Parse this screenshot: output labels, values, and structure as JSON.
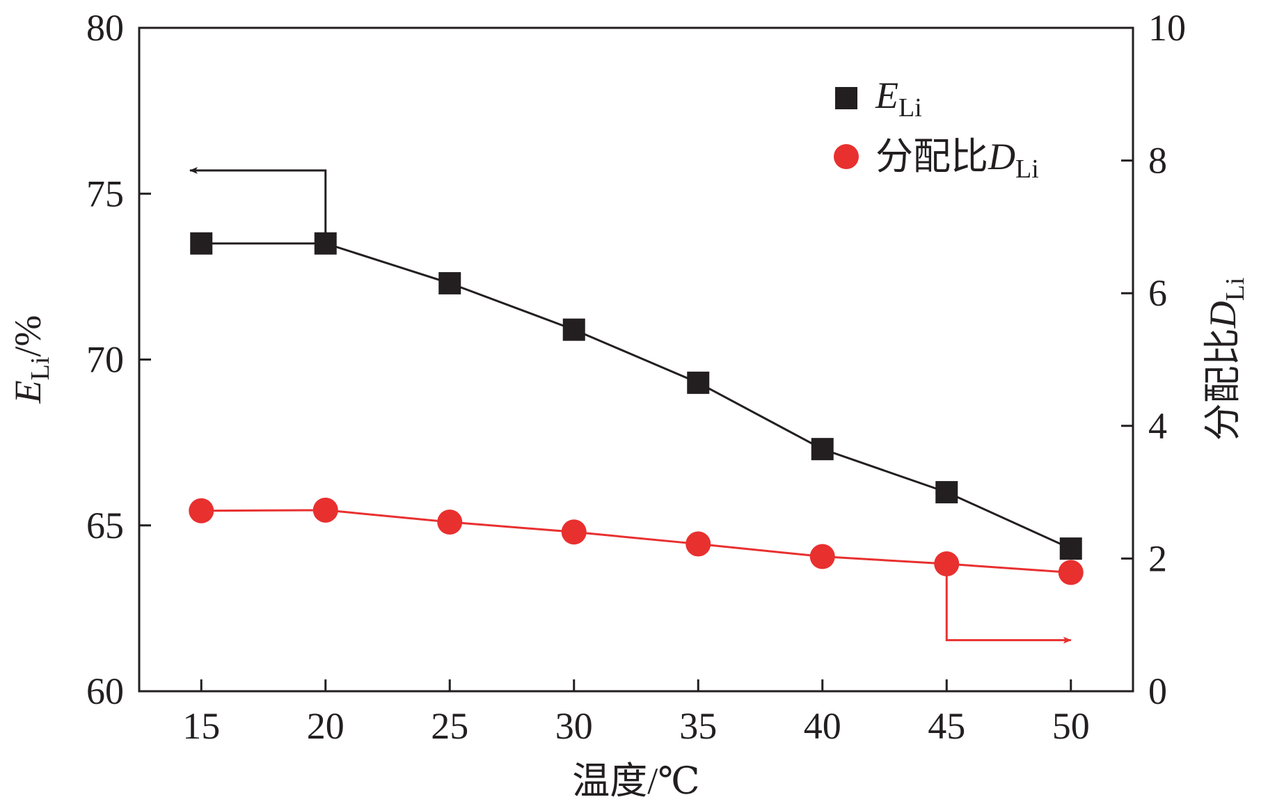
{
  "chart_data": {
    "type": "line",
    "x": [
      15,
      20,
      25,
      30,
      35,
      40,
      45,
      50
    ],
    "xlabel": "温度/℃",
    "xlim": [
      12.5,
      52.5
    ],
    "x_ticks": [
      "15",
      "20",
      "25",
      "30",
      "35",
      "40",
      "45",
      "50"
    ],
    "ylabel": {
      "main": "E",
      "sub": "Li",
      "suffix": "/%"
    },
    "ylim": [
      60,
      80
    ],
    "y_ticks": [
      "60",
      "65",
      "70",
      "75",
      "80"
    ],
    "y2label": {
      "prefix": "分配比",
      "main": "D",
      "sub": "Li"
    },
    "y2lim": [
      0,
      10
    ],
    "y2_ticks": [
      "0",
      "2",
      "4",
      "6",
      "8",
      "10"
    ],
    "grid": false,
    "legend_position": "top-right",
    "series": [
      {
        "legend": {
          "main": "E",
          "sub": "Li"
        },
        "axis": "left",
        "marker": "square",
        "color": "#231f20",
        "values": [
          73.5,
          73.5,
          72.3,
          70.9,
          69.3,
          67.3,
          66.0,
          64.3
        ]
      },
      {
        "legend": {
          "prefix": "分配比",
          "main": "D",
          "sub": "Li"
        },
        "axis": "right",
        "marker": "circle",
        "color": "#e8302f",
        "values": [
          2.72,
          2.73,
          2.55,
          2.4,
          2.22,
          2.03,
          1.92,
          1.79
        ]
      }
    ]
  }
}
